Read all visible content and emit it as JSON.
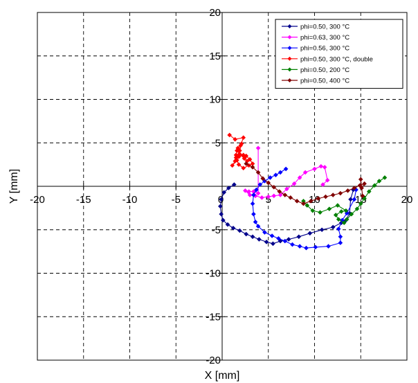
{
  "chart_data": {
    "type": "scatter",
    "title": "",
    "xlabel": "X [mm]",
    "ylabel": "Y [mm]",
    "xlim": [
      -20,
      20
    ],
    "ylim": [
      -20,
      20
    ],
    "xticks": [
      "-20",
      "-15",
      "-10",
      "-5",
      "0",
      "5",
      "10",
      "15",
      "20"
    ],
    "yticks": [
      "-20",
      "-15",
      "-10",
      "-5",
      "0",
      "5",
      "10",
      "15",
      "20"
    ],
    "grid": true,
    "legend_position": "top-right",
    "series": [
      {
        "name": "phi=0.50, 300 °C",
        "color": "#00008B",
        "points": [
          [
            1.3,
            0.2
          ],
          [
            0.7,
            -0.2
          ],
          [
            0.2,
            -0.7
          ],
          [
            -0.1,
            -1.5
          ],
          [
            -0.2,
            -2.3
          ],
          [
            -0.1,
            -3.2
          ],
          [
            0.1,
            -3.9
          ],
          [
            0.6,
            -4.4
          ],
          [
            1.2,
            -4.8
          ],
          [
            1.9,
            -5.1
          ],
          [
            2.6,
            -5.5
          ],
          [
            3.3,
            -5.8
          ],
          [
            4.0,
            -6.1
          ],
          [
            4.8,
            -6.4
          ],
          [
            5.5,
            -6.6
          ],
          [
            6.3,
            -6.3
          ],
          [
            7.2,
            -6.1
          ],
          [
            8.3,
            -5.8
          ],
          [
            9.5,
            -5.4
          ],
          [
            10.8,
            -5.0
          ],
          [
            12.0,
            -4.7
          ],
          [
            12.9,
            -4.2
          ],
          [
            13.4,
            -3.9
          ],
          [
            13.8,
            -3.1
          ],
          [
            13.9,
            -1.5
          ],
          [
            14.2,
            -0.4
          ]
        ]
      },
      {
        "name": "phi=0.63, 300 °C",
        "color": "#FF00FF",
        "points": [
          [
            3.9,
            4.4
          ],
          [
            3.9,
            -0.8
          ],
          [
            3.4,
            -0.6
          ],
          [
            2.9,
            -0.6
          ],
          [
            2.5,
            -0.5
          ],
          [
            3.0,
            -1.0
          ],
          [
            3.6,
            -1.1
          ],
          [
            4.3,
            -1.3
          ],
          [
            5.0,
            -1.2
          ],
          [
            5.6,
            -1.1
          ],
          [
            6.3,
            -1.0
          ],
          [
            7.0,
            -0.3
          ],
          [
            7.8,
            0.3
          ],
          [
            8.4,
            1.0
          ],
          [
            9.0,
            1.6
          ],
          [
            10.0,
            2.0
          ],
          [
            10.7,
            2.3
          ],
          [
            11.1,
            2.2
          ],
          [
            11.4,
            0.7
          ],
          [
            10.9,
            0.2
          ]
        ]
      },
      {
        "name": "phi=0.56, 300 °C",
        "color": "#0000FF",
        "points": [
          [
            6.9,
            2.0
          ],
          [
            6.3,
            1.6
          ],
          [
            5.8,
            1.3
          ],
          [
            5.2,
            1.0
          ],
          [
            4.6,
            0.6
          ],
          [
            4.1,
            0.2
          ],
          [
            3.7,
            -0.4
          ],
          [
            3.4,
            -1.0
          ],
          [
            3.3,
            -2.0
          ],
          [
            3.4,
            -3.2
          ],
          [
            3.6,
            -4.1
          ],
          [
            3.9,
            -4.6
          ],
          [
            4.6,
            -5.3
          ],
          [
            5.4,
            -5.7
          ],
          [
            6.1,
            -6.0
          ],
          [
            6.8,
            -6.3
          ],
          [
            7.6,
            -6.7
          ],
          [
            8.4,
            -6.9
          ],
          [
            9.1,
            -7.1
          ],
          [
            10.1,
            -7.0
          ],
          [
            11.5,
            -6.9
          ],
          [
            12.8,
            -6.5
          ],
          [
            12.8,
            -5.8
          ],
          [
            12.6,
            -4.9
          ],
          [
            13.0,
            -3.9
          ],
          [
            13.5,
            -3.1
          ],
          [
            14.3,
            -1.5
          ],
          [
            14.5,
            -0.4
          ]
        ]
      },
      {
        "name": "phi=0.50, 300 °C, double",
        "color": "#FF0000",
        "points": [
          [
            0.8,
            5.9
          ],
          [
            1.4,
            5.4
          ],
          [
            2.3,
            5.6
          ],
          [
            2.0,
            4.7
          ],
          [
            1.7,
            4.4
          ],
          [
            1.5,
            3.6
          ],
          [
            1.6,
            3.0
          ],
          [
            1.1,
            2.4
          ],
          [
            1.4,
            2.9
          ],
          [
            1.8,
            3.4
          ],
          [
            2.3,
            3.6
          ],
          [
            2.6,
            3.5
          ],
          [
            3.0,
            3.1
          ],
          [
            3.3,
            2.6
          ],
          [
            2.9,
            2.4
          ],
          [
            2.3,
            2.1
          ],
          [
            1.8,
            2.5
          ],
          [
            1.5,
            3.3
          ],
          [
            1.9,
            4.1
          ],
          [
            2.1,
            4.9
          ],
          [
            1.6,
            4.1
          ],
          [
            1.9,
            3.7
          ],
          [
            2.4,
            3.2
          ],
          [
            2.7,
            2.9
          ]
        ]
      },
      {
        "name": "phi=0.50, 200 °C",
        "color": "#008000",
        "points": [
          [
            17.6,
            1.0
          ],
          [
            17.0,
            0.6
          ],
          [
            16.5,
            0.1
          ],
          [
            15.9,
            -0.6
          ],
          [
            15.4,
            -1.4
          ],
          [
            15.0,
            -2.0
          ],
          [
            14.6,
            -2.6
          ],
          [
            14.0,
            -3.2
          ],
          [
            13.5,
            -3.8
          ],
          [
            13.2,
            -4.2
          ],
          [
            12.6,
            -3.8
          ],
          [
            12.3,
            -3.3
          ],
          [
            12.9,
            -2.9
          ],
          [
            13.4,
            -2.8
          ],
          [
            12.5,
            -2.2
          ],
          [
            11.6,
            -2.6
          ],
          [
            10.6,
            -3.0
          ],
          [
            9.8,
            -2.8
          ],
          [
            9.2,
            -2.2
          ],
          [
            8.8,
            -1.7
          ]
        ]
      },
      {
        "name": "phi=0.50, 400 °C",
        "color": "#800000",
        "points": [
          [
            2.6,
            2.6
          ],
          [
            3.3,
            2.2
          ],
          [
            3.9,
            1.6
          ],
          [
            4.4,
            0.9
          ],
          [
            5.0,
            0.4
          ],
          [
            5.6,
            -0.1
          ],
          [
            6.2,
            -0.6
          ],
          [
            6.8,
            -1.0
          ],
          [
            7.4,
            -1.3
          ],
          [
            8.1,
            -1.7
          ],
          [
            8.8,
            -2.0
          ],
          [
            9.6,
            -1.7
          ],
          [
            10.4,
            -1.4
          ],
          [
            11.2,
            -1.2
          ],
          [
            12.0,
            -1.0
          ],
          [
            12.8,
            -0.8
          ],
          [
            13.6,
            -0.5
          ],
          [
            14.3,
            -0.2
          ],
          [
            14.9,
            0.1
          ],
          [
            15.4,
            0.3
          ],
          [
            15.1,
            -0.2
          ],
          [
            15.2,
            -1.1
          ],
          [
            15.0,
            0.8
          ]
        ]
      }
    ]
  }
}
